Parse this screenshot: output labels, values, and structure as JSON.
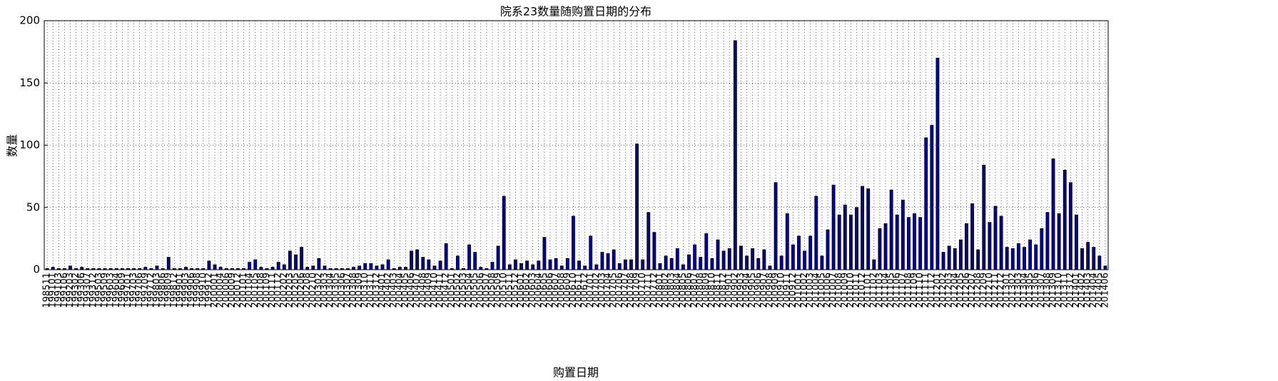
{
  "chart_data": {
    "type": "bar",
    "title": "院系23数量随购置日期的分布",
    "xlabel": "购置日期",
    "ylabel": "数量",
    "color": "#0000b0",
    "categories": [
      "198511",
      "199101",
      "199103",
      "199106",
      "199203",
      "199302",
      "199306",
      "199307",
      "199312",
      "199503",
      "199509",
      "199603",
      "199604",
      "199609",
      "199701",
      "199703",
      "199706",
      "199709",
      "199712",
      "199803",
      "199806",
      "199809",
      "199812",
      "199901",
      "199903",
      "199906",
      "199908",
      "199910",
      "199912",
      "200001",
      "200004",
      "200006",
      "200009",
      "200012",
      "200101",
      "200104",
      "200105",
      "200108",
      "200109",
      "200111",
      "200112",
      "200202",
      "200203",
      "200205",
      "200206",
      "200208",
      "200210",
      "200302",
      "200303",
      "200304",
      "200305",
      "200306",
      "200307",
      "200308",
      "200309",
      "200310",
      "200311",
      "200312",
      "200401",
      "200402",
      "200403",
      "200404",
      "200405",
      "200406",
      "200407",
      "200408",
      "200409",
      "200410",
      "200411",
      "200412",
      "200501",
      "200502",
      "200503",
      "200504",
      "200505",
      "200506",
      "200507",
      "200508",
      "200509",
      "200510",
      "200511",
      "200512",
      "200601",
      "200602",
      "200603",
      "200604",
      "200605",
      "200606",
      "200607",
      "200608",
      "200609",
      "200610",
      "200611",
      "200612",
      "200701",
      "200702",
      "200703",
      "200704",
      "200705",
      "200706",
      "200707",
      "200708",
      "200709",
      "200710",
      "200711",
      "200712",
      "200801",
      "200802",
      "200803",
      "200804",
      "200805",
      "200806",
      "200807",
      "200808",
      "200809",
      "200810",
      "200811",
      "200812",
      "200901",
      "200902",
      "200903",
      "200904",
      "200905",
      "200906",
      "200907",
      "200908",
      "200909",
      "200910",
      "200911",
      "200912",
      "201001",
      "201002",
      "201003",
      "201004",
      "201005",
      "201006",
      "201007",
      "201008",
      "201009",
      "201010",
      "201011",
      "201012",
      "201101",
      "201102",
      "201103",
      "201104",
      "201105",
      "201106",
      "201107",
      "201108",
      "201109",
      "201110",
      "201111",
      "201112",
      "201201",
      "201202",
      "201203",
      "201204",
      "201205",
      "201206",
      "201207",
      "201208",
      "201209",
      "201210",
      "201211",
      "201212",
      "201301",
      "201302",
      "201303",
      "201304",
      "201305",
      "201306",
      "201307",
      "201308",
      "201309",
      "201310",
      "201311",
      "201312",
      "201401",
      "201402",
      "201403",
      "201404",
      "201405",
      "201406"
    ],
    "values": [
      1,
      2,
      1,
      1,
      3,
      1,
      2,
      1,
      1,
      1,
      1,
      1,
      1,
      1,
      1,
      1,
      1,
      2,
      1,
      3,
      1,
      10,
      1,
      1,
      2,
      1,
      1,
      1,
      7,
      4,
      2,
      1,
      1,
      1,
      1,
      6,
      8,
      2,
      1,
      2,
      6,
      4,
      15,
      12,
      18,
      2,
      3,
      9,
      3,
      1,
      1,
      1,
      1,
      2,
      3,
      5,
      5,
      3,
      4,
      8,
      1,
      2,
      2,
      15,
      16,
      10,
      8,
      3,
      7,
      21,
      1,
      11,
      1,
      20,
      14,
      2,
      1,
      6,
      19,
      59,
      4,
      8,
      5,
      7,
      4,
      7,
      26,
      8,
      9,
      3,
      9,
      43,
      7,
      3,
      27,
      4,
      14,
      13,
      16,
      5,
      8,
      8,
      101,
      8,
      46,
      30,
      5,
      11,
      9,
      17,
      4,
      12,
      20,
      10,
      29,
      9,
      24,
      15,
      17,
      184,
      19,
      11,
      17,
      9,
      16,
      3,
      70,
      11,
      45,
      20,
      27,
      15,
      27,
      59,
      11,
      32,
      68,
      44,
      52,
      44,
      50,
      67,
      65,
      8,
      33,
      37,
      64,
      44,
      56,
      42,
      45,
      42,
      106,
      116,
      170,
      14,
      19,
      17,
      24,
      37,
      53,
      16,
      84,
      38,
      51,
      43,
      18,
      17,
      21,
      18,
      24,
      20,
      33,
      46,
      89,
      45,
      80,
      70,
      44,
      17,
      22,
      18,
      11,
      3
    ],
    "ylim": [
      0,
      200
    ],
    "yticks": [
      0,
      50,
      100,
      150,
      200
    ],
    "grid": true
  }
}
